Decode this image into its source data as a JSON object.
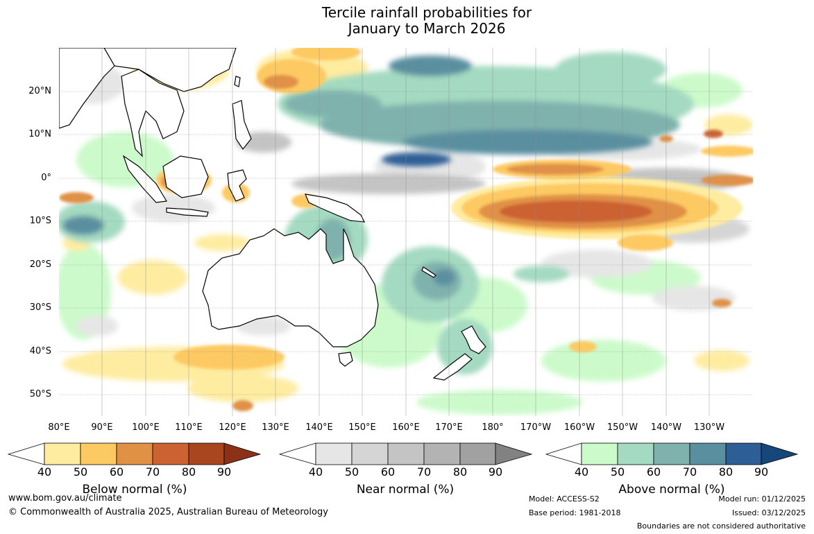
{
  "title": {
    "line1": "Tercile rainfall probabilities for",
    "line2": "January to March 2026"
  },
  "map": {
    "region": "Australia, Indian Ocean, Maritime Continent and western Pacific",
    "lon_labels": [
      "80°E",
      "90°E",
      "100°E",
      "110°E",
      "120°E",
      "130°E",
      "140°E",
      "150°E",
      "160°E",
      "170°E",
      "180°",
      "170°W",
      "160°W",
      "150°W",
      "140°W",
      "130°W"
    ],
    "lat_labels": [
      "20°N",
      "10°N",
      "0°",
      "10°S",
      "20°S",
      "30°S",
      "40°S",
      "50°S"
    ]
  },
  "colorbars": [
    {
      "name": "below-normal",
      "label": "Below normal (%)",
      "ticks": [
        "40",
        "50",
        "60",
        "70",
        "80",
        "90"
      ],
      "colors": [
        "#ffffff",
        "#feeca0",
        "#fdc962",
        "#e09146",
        "#cc6231",
        "#a9451f",
        "#8a3118"
      ]
    },
    {
      "name": "near-normal",
      "label": "Near normal (%)",
      "ticks": [
        "40",
        "50",
        "60",
        "70",
        "80",
        "90"
      ],
      "colors": [
        "#ffffff",
        "#e6e6e6",
        "#d5d5d5",
        "#c4c4c4",
        "#b3b3b3",
        "#a1a1a1",
        "#828282"
      ]
    },
    {
      "name": "above-normal",
      "label": "Above normal (%)",
      "ticks": [
        "40",
        "50",
        "60",
        "70",
        "80",
        "90"
      ],
      "colors": [
        "#ffffff",
        "#ccfacb",
        "#a4dac1",
        "#7fb2ad",
        "#5a8fa0",
        "#2d5e95",
        "#17477a"
      ]
    }
  ],
  "footer": {
    "website": "www.bom.gov.au/climate",
    "copyright": "© Commonwealth of Australia 2025, Australian Bureau of Meteorology",
    "model": "Model: ACCESS-S2",
    "base_period": "Base period: 1981-2018",
    "model_run": "Model run: 01/12/2025",
    "issued": "Issued: 03/12/2025",
    "disclaimer": "Boundaries are not considered authoritative"
  }
}
